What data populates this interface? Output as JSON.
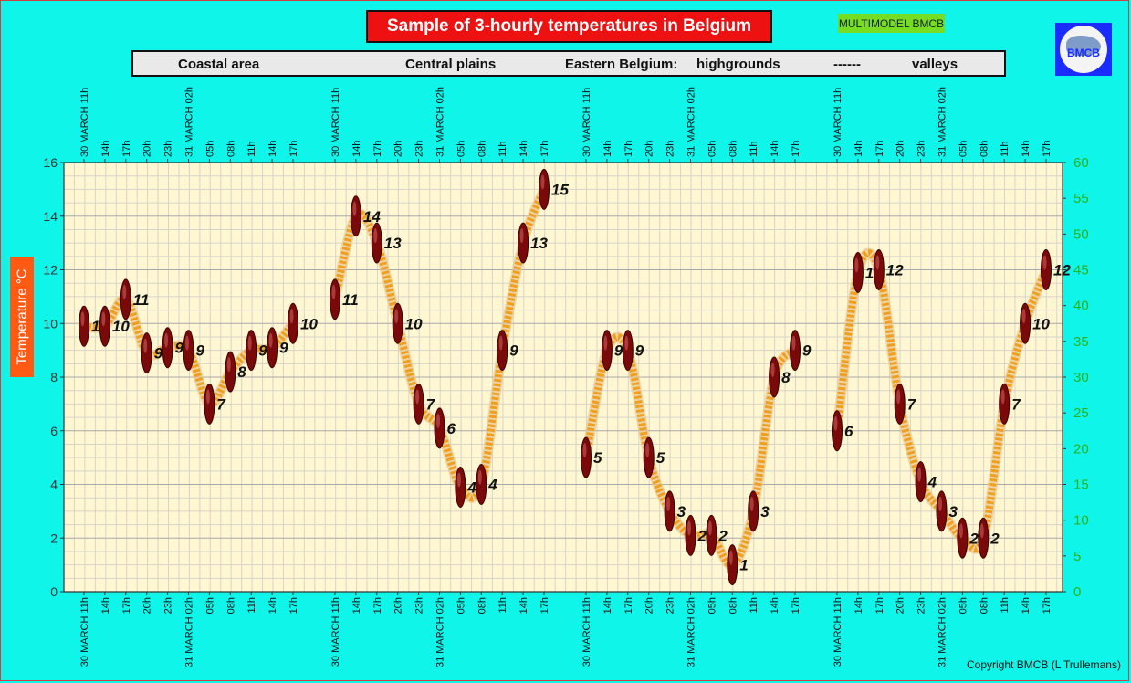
{
  "title": "Sample of 3-hourly temperatures in Belgium",
  "badge": "MULTIMODEL BMCB",
  "logo_text": "BMCB",
  "regions": {
    "coastal": "Coastal area",
    "central": "Central plains",
    "eastern": "Eastern Belgium:",
    "highgrounds": "highgrounds",
    "sep": "------",
    "valleys": "valleys"
  },
  "ylabel": "Temperature   °C",
  "copyright": "Copyright BMCB (L Trullemans)",
  "colors": {
    "background": "#00ffee",
    "plot_area": "#fff6d2",
    "line": "#f0a020",
    "marker": "#7a0a0a",
    "title_bg": "#ee1111",
    "right_axis": "#2bb21a"
  },
  "chart_data": {
    "type": "line",
    "title": "Sample of 3-hourly temperatures in Belgium",
    "ylabel": "Temperature °C",
    "ylim": [
      0,
      16
    ],
    "y_ticks": [
      0,
      2,
      4,
      6,
      8,
      10,
      12,
      14,
      16
    ],
    "y2lim": [
      0,
      60
    ],
    "y2_ticks": [
      0,
      5,
      10,
      15,
      20,
      25,
      30,
      35,
      40,
      45,
      50,
      55,
      60
    ],
    "grid": true,
    "x_labels": [
      "30 MARCH 11h",
      "14h",
      "17h",
      "20h",
      "23h",
      "31 MARCH 02h",
      "05h",
      "08h",
      "11h",
      "14h",
      "17h"
    ],
    "series": [
      {
        "name": "Coastal area",
        "values": [
          9.9,
          9.9,
          10.9,
          8.9,
          9.1,
          9.0,
          7.0,
          8.2,
          9.0,
          9.1,
          10.0
        ]
      },
      {
        "name": "Central plains",
        "values": [
          10.9,
          14.0,
          13.0,
          10.0,
          7.0,
          6.1,
          3.9,
          4.0,
          9.0,
          13.0,
          15.0
        ]
      },
      {
        "name": "highgrounds",
        "values": [
          5.0,
          9.0,
          9.0,
          5.0,
          3.0,
          2.1,
          2.1,
          1.0,
          3.0,
          8.0,
          9.0
        ]
      },
      {
        "name": "valleys",
        "values": [
          6.0,
          11.9,
          12.0,
          7.0,
          4.1,
          3.0,
          2.0,
          2.0,
          7.0,
          10.0,
          12.0
        ]
      }
    ],
    "data_labels": [
      [
        "10",
        "10",
        "11",
        "9",
        "9",
        "9",
        "7",
        "8",
        "9",
        "9",
        "10"
      ],
      [
        "11",
        "14",
        "13",
        "10",
        "7",
        "6",
        "4",
        "4",
        "9",
        "13",
        "15"
      ],
      [
        "5",
        "9",
        "9",
        "5",
        "3",
        "2",
        "2",
        "1",
        "3",
        "8",
        "9"
      ],
      [
        "6",
        "12",
        "12",
        "7",
        "4",
        "3",
        "2",
        "2",
        "7",
        "10",
        "12"
      ]
    ]
  }
}
